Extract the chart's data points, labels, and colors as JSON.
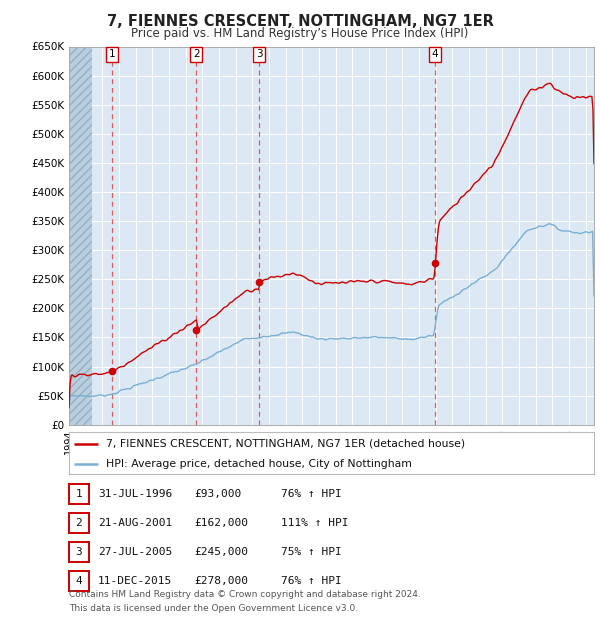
{
  "title": "7, FIENNES CRESCENT, NOTTINGHAM, NG7 1ER",
  "subtitle": "Price paid vs. HM Land Registry’s House Price Index (HPI)",
  "background_color": "#ffffff",
  "plot_bg_color": "#dce9f5",
  "ylim": [
    0,
    650000
  ],
  "yticks": [
    0,
    50000,
    100000,
    150000,
    200000,
    250000,
    300000,
    350000,
    400000,
    450000,
    500000,
    550000,
    600000,
    650000
  ],
  "ytick_labels": [
    "£0",
    "£50K",
    "£100K",
    "£150K",
    "£200K",
    "£250K",
    "£300K",
    "£350K",
    "£400K",
    "£450K",
    "£500K",
    "£550K",
    "£600K",
    "£650K"
  ],
  "xlim_start": 1994.0,
  "xlim_end": 2025.5,
  "hatch_end": 1995.4,
  "sale_dates_decimal": [
    1996.58,
    2001.64,
    2005.42,
    2015.95
  ],
  "sale_prices": [
    93000,
    162000,
    245000,
    278000
  ],
  "sale_labels": [
    "1",
    "2",
    "3",
    "4"
  ],
  "sale_date_strings": [
    "31-JUL-1996",
    "21-AUG-2001",
    "27-JUL-2005",
    "11-DEC-2015"
  ],
  "sale_price_strings": [
    "£93,000",
    "£162,000",
    "£245,000",
    "£278,000"
  ],
  "sale_pct_strings": [
    "76% ↑ HPI",
    "111% ↑ HPI",
    "75% ↑ HPI",
    "76% ↑ HPI"
  ],
  "red_line_color": "#cc0000",
  "blue_line_color": "#7bafd4",
  "marker_color": "#cc0000",
  "legend_label_red": "7, FIENNES CRESCENT, NOTTINGHAM, NG7 1ER (detached house)",
  "legend_label_blue": "HPI: Average price, detached house, City of Nottingham",
  "footer_text": "Contains HM Land Registry data © Crown copyright and database right 2024.\nThis data is licensed under the Open Government Licence v3.0.",
  "grid_color": "#ffffff",
  "dashed_line_color": "#dd4444"
}
